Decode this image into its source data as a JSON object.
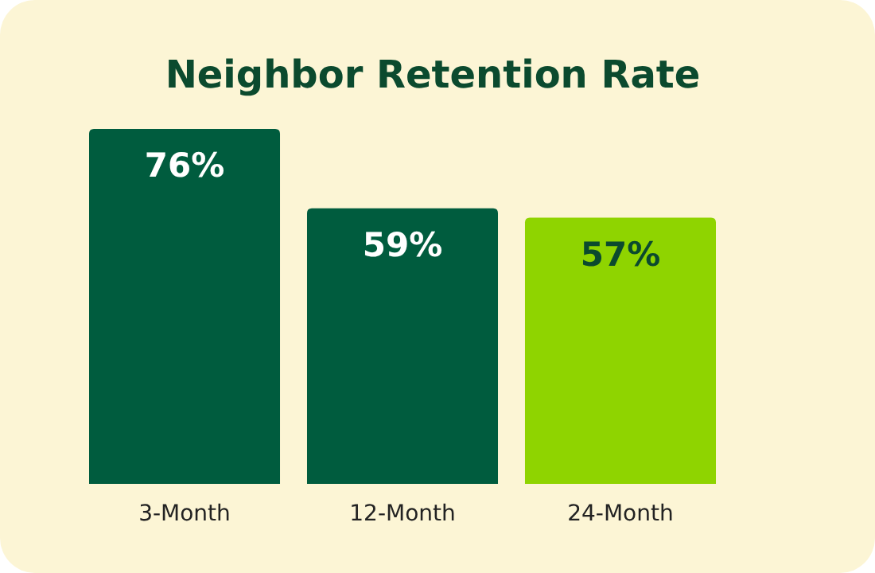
{
  "chart_data": {
    "type": "bar",
    "title": "Neighbor Retention Rate",
    "categories": [
      "3-Month",
      "12-Month",
      "24-Month"
    ],
    "values": [
      76,
      59,
      57
    ],
    "colors": [
      "#005c3e",
      "#005c3e",
      "#8fd400"
    ],
    "value_labels": [
      "76%",
      "59%",
      "57%"
    ]
  }
}
